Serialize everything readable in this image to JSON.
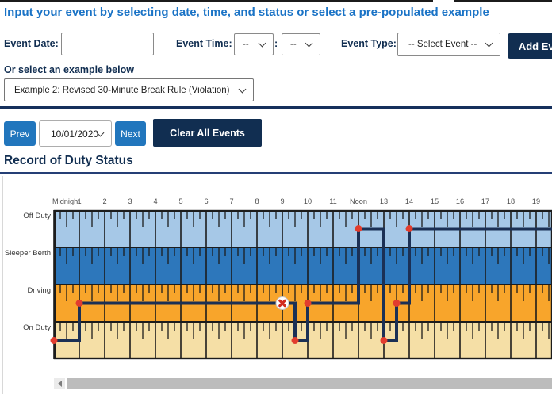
{
  "page": {
    "title": "Input your event by selecting date, time, and status or select a pre-populated example",
    "section_heading": "Record of Duty Status"
  },
  "form": {
    "event_date_label": "Event Date:",
    "event_date_value": "",
    "event_time_label": "Event Time:",
    "hour_value": "--",
    "time_separator": ":",
    "minute_value": "--",
    "event_type_label": "Event Type:",
    "event_type_value": "-- Select Event --",
    "add_button_label": "Add Event",
    "example_label": "Or select an example below",
    "example_value": "Example 2: Revised 30-Minute Break Rule (Violation)"
  },
  "toolbar": {
    "prev_label": "Prev",
    "date_value": "10/01/2020",
    "next_label": "Next",
    "clear_label": "Clear All Events"
  },
  "chart_data": {
    "type": "duty-status-step-timeline",
    "title": "Record of Duty Status",
    "date": "10/01/2020",
    "hour_labels": [
      "Midnight",
      "1",
      "2",
      "3",
      "4",
      "5",
      "6",
      "7",
      "8",
      "9",
      "10",
      "11",
      "Noon",
      "13",
      "14",
      "15",
      "16",
      "17",
      "18",
      "19"
    ],
    "rows": [
      {
        "label": "Off Duty",
        "color": "#a6c8e7"
      },
      {
        "label": "Sleeper Berth",
        "color": "#2d77bb"
      },
      {
        "label": "Driving",
        "color": "#f8a52b"
      },
      {
        "label": "On Duty",
        "color": "#f5dfa6"
      }
    ],
    "events": [
      {
        "time": "00:00",
        "status": "On Duty"
      },
      {
        "time": "01:00",
        "status": "Driving"
      },
      {
        "time": "09:30",
        "status": "On Duty"
      },
      {
        "time": "10:00",
        "status": "Driving"
      },
      {
        "time": "12:00",
        "status": "Off Duty"
      },
      {
        "time": "13:00",
        "status": "On Duty"
      },
      {
        "time": "13:30",
        "status": "Driving"
      },
      {
        "time": "14:00",
        "status": "Off Duty"
      }
    ],
    "segments": [
      {
        "status": "On Duty",
        "from": 0,
        "to": 1
      },
      {
        "status": "Driving",
        "from": 1,
        "to": 9.5
      },
      {
        "status": "On Duty",
        "from": 9.5,
        "to": 10
      },
      {
        "status": "Driving",
        "from": 10,
        "to": 12
      },
      {
        "status": "Off Duty",
        "from": 12,
        "to": 13
      },
      {
        "status": "On Duty",
        "from": 13,
        "to": 13.5
      },
      {
        "status": "Driving",
        "from": 13.5,
        "to": 14
      },
      {
        "status": "Off Duty",
        "from": 14,
        "to": 19.625
      }
    ],
    "violation_marker": {
      "status": "Driving",
      "hour": 9,
      "symbol": "x"
    },
    "line_color": "#1b3055",
    "dot_color": "#e23d2e",
    "violation_color": "#d22b20",
    "grid_line_color": "#1c1c1c",
    "hour_label_color": "#4f4f4f",
    "row_label_color": "#3a3a3a"
  },
  "colors": {
    "navy": "#112e51",
    "blue_button": "#2176bd",
    "title_blue": "#1a73c6",
    "divider_navy": "#16305c"
  }
}
